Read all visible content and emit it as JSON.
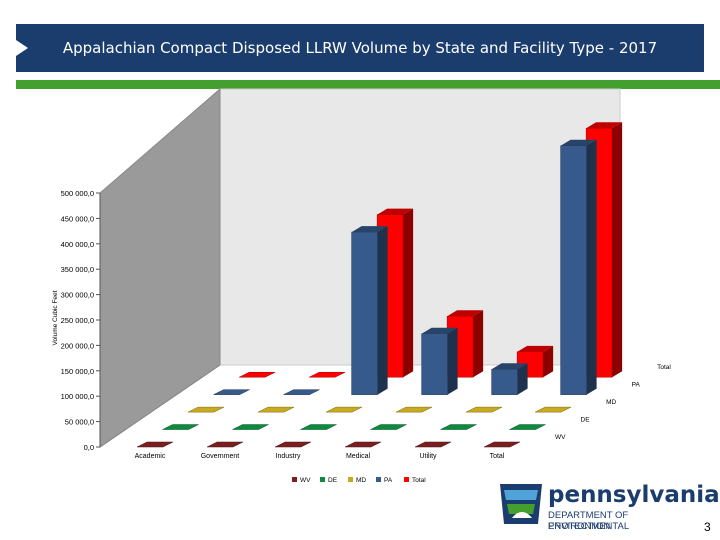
{
  "header": {
    "title": "Appalachian Compact Disposed LLRW Volume by State and Facility Type - 2017"
  },
  "logo": {
    "icon": "keystone-state-logo-icon",
    "name": "pennsylvania",
    "line1": "DEPARTMENT OF ENVIRONMENTAL",
    "line2": "PROTECTION"
  },
  "page_number": "3",
  "colors": {
    "header_bg": "#1b3d6e",
    "accent_green": "#43a02e",
    "WV": "#7a1f1f",
    "DE": "#0e8a3e",
    "MD": "#c8aa1e",
    "PA": "#375a8c",
    "Total": "#ff0000"
  },
  "chart_data": {
    "type": "bar",
    "subtype": "3d-clustered-depth",
    "title": "",
    "xlabel": "",
    "ylabel": "Volume Cubic Feet",
    "ylim": [
      0,
      500000
    ],
    "yticks": [
      "0,0",
      "50 000,0",
      "100 000,0",
      "150 000,0",
      "200 000,0",
      "250 000,0",
      "300 000,0",
      "350 000,0",
      "400 000,0",
      "450 000,0",
      "500 000,0"
    ],
    "categories": [
      "Academic",
      "Government",
      "Industry",
      "Medical",
      "Utility",
      "Total"
    ],
    "series": [
      {
        "name": "WV",
        "values": [
          0,
          0,
          0,
          0,
          0,
          0
        ]
      },
      {
        "name": "DE",
        "values": [
          0,
          0,
          0,
          0,
          0,
          0
        ]
      },
      {
        "name": "MD",
        "values": [
          0,
          0,
          0,
          0,
          500,
          500
        ]
      },
      {
        "name": "PA",
        "values": [
          0,
          0,
          320000,
          120000,
          50000,
          490000
        ]
      },
      {
        "name": "Total",
        "values": [
          0,
          0,
          320000,
          120000,
          50000,
          490000
        ]
      }
    ],
    "series_labels": [
      "WV",
      "DE",
      "MD",
      "PA",
      "Total"
    ],
    "legend_labels": [
      "WV",
      "DE",
      "MD",
      "PA",
      "Total"
    ],
    "legend": "bottom",
    "grid": false
  }
}
